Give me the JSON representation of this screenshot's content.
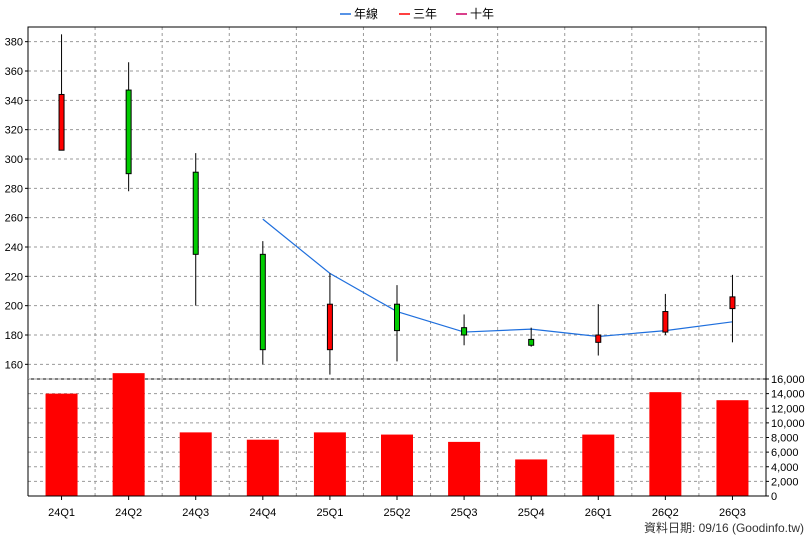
{
  "chart_data": {
    "type": "candlestick+bar",
    "categories": [
      "24Q1",
      "24Q2",
      "24Q3",
      "24Q4",
      "25Q1",
      "25Q2",
      "25Q3",
      "25Q4",
      "26Q1",
      "26Q2",
      "26Q3"
    ],
    "legend": [
      "年線",
      "三年",
      "十年"
    ],
    "legend_position": "top-center",
    "price": {
      "ylim": [
        150,
        390
      ],
      "yticks": [
        160,
        180,
        200,
        220,
        240,
        260,
        280,
        300,
        320,
        340,
        360,
        380
      ],
      "candles": [
        {
          "open": 306,
          "close": 344,
          "high": 385,
          "low": 306
        },
        {
          "open": 347,
          "close": 290,
          "high": 366,
          "low": 278
        },
        {
          "open": 291,
          "close": 235,
          "high": 304,
          "low": 200
        },
        {
          "open": 235,
          "close": 170,
          "high": 244,
          "low": 160
        },
        {
          "open": 170,
          "close": 201,
          "high": 222,
          "low": 153
        },
        {
          "open": 201,
          "close": 183,
          "high": 214,
          "low": 162
        },
        {
          "open": 185,
          "close": 180,
          "high": 194,
          "low": 173
        },
        {
          "open": 177,
          "close": 173,
          "high": 185,
          "low": 172
        },
        {
          "open": 175,
          "close": 180,
          "high": 201,
          "low": 166
        },
        {
          "open": 182,
          "close": 196,
          "high": 208,
          "low": 180
        },
        {
          "open": 198,
          "close": 206,
          "high": 221,
          "low": 175
        }
      ],
      "year_line": {
        "name": "年線",
        "values": [
          null,
          null,
          null,
          259,
          222,
          196,
          182,
          184,
          179,
          183,
          189
        ]
      }
    },
    "volume": {
      "ylim": [
        0,
        16000
      ],
      "yticks": [
        0,
        2000,
        4000,
        6000,
        8000,
        10000,
        12000,
        14000,
        16000
      ],
      "ytick_labels": [
        "0",
        "2,000",
        "4,000",
        "6,000",
        "8,000",
        "10,000",
        "12,000",
        "14,000",
        "16,000"
      ],
      "values": [
        14000,
        16800,
        8700,
        7700,
        8700,
        8400,
        7400,
        5000,
        8400,
        14200,
        13100
      ]
    },
    "grid": true,
    "colors": {
      "up": "#ff0000",
      "down": "#00cc00",
      "volume_bar": "#ff0000",
      "year_line": "#1f6fdd",
      "three_year_line": "#ff0000",
      "ten_year_line": "#cc0066",
      "grid": "#9a9a9a",
      "axis": "#000000"
    }
  },
  "footer": "資料日期: 09/16  (Goodinfo.tw)"
}
